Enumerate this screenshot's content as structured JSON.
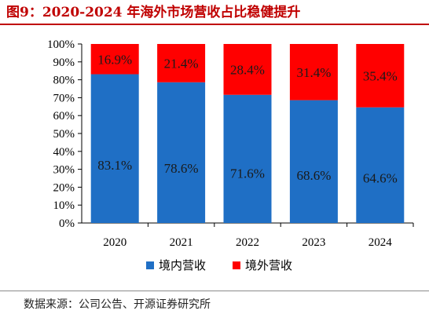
{
  "title": "图9：2020-2024 年海外市场营收占比稳健提升",
  "source": "数据来源：公司公告、开源证券研究所",
  "colors": {
    "domestic": "#1f6fc5",
    "overseas": "#ff0000",
    "title": "#c00000"
  },
  "chart_data": {
    "type": "bar",
    "stacked": true,
    "categories": [
      "2020",
      "2021",
      "2022",
      "2023",
      "2024"
    ],
    "series": [
      {
        "name": "境内营收",
        "values": [
          83.1,
          78.6,
          71.6,
          68.6,
          64.6
        ],
        "labels": [
          "83.1%",
          "78.6%",
          "71.6%",
          "68.6%",
          "64.6%"
        ]
      },
      {
        "name": "境外营收",
        "values": [
          16.9,
          21.4,
          28.4,
          31.4,
          35.4
        ],
        "labels": [
          "16.9%",
          "21.4%",
          "28.4%",
          "31.4%",
          "35.4%"
        ]
      }
    ],
    "yticks": [
      "0%",
      "10%",
      "20%",
      "30%",
      "40%",
      "50%",
      "60%",
      "70%",
      "80%",
      "90%",
      "100%"
    ],
    "ylim": [
      0,
      100
    ],
    "grid": false,
    "legend": "bottom"
  }
}
